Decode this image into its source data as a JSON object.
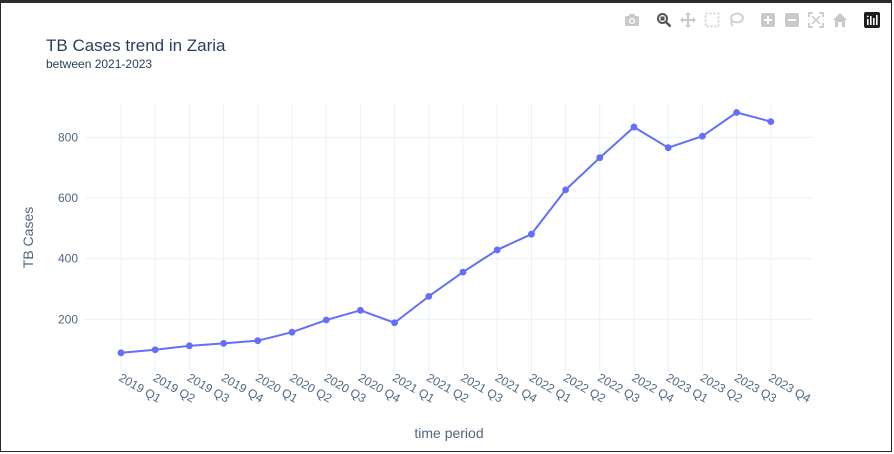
{
  "chart_data": {
    "type": "line",
    "title": "TB Cases trend in Zaria",
    "subtitle": "between 2021-2023",
    "xlabel": "time period",
    "ylabel": "TB Cases",
    "categories": [
      "2019 Q1",
      "2019 Q2",
      "2019 Q3",
      "2019 Q4",
      "2020 Q1",
      "2020 Q2",
      "2020 Q3",
      "2020 Q4",
      "2021 Q1",
      "2021 Q2",
      "2021 Q3",
      "2021 Q4",
      "2022 Q1",
      "2022 Q2",
      "2022 Q3",
      "2022 Q4",
      "2023 Q1",
      "2023 Q2",
      "2023 Q3",
      "2023 Q4"
    ],
    "series": [
      {
        "values": [
          90,
          100,
          113,
          121,
          130,
          158,
          198,
          230,
          189,
          276,
          356,
          429,
          481,
          627,
          733,
          834,
          766,
          804,
          882,
          852
        ]
      }
    ],
    "ylim": [
      30,
      910
    ],
    "yticks": [
      200,
      400,
      600,
      800
    ],
    "grid": true,
    "line_color": "#636efa"
  },
  "modebar": {
    "icons": [
      "camera-icon",
      "zoom-icon",
      "pan-icon",
      "box-select-icon",
      "lasso-icon",
      "zoom-in-icon",
      "zoom-out-icon",
      "autoscale-icon",
      "reset-axes-icon",
      "plotly-logo-icon"
    ]
  }
}
